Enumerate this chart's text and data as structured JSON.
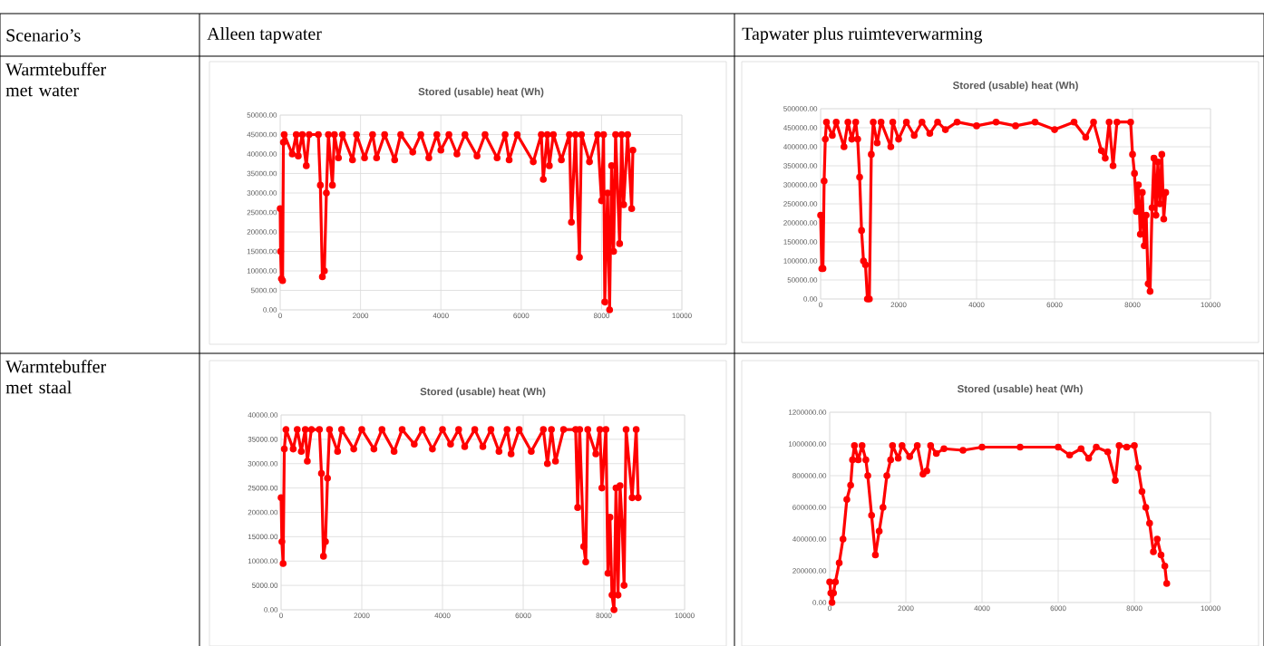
{
  "chart_data": [
    {
      "type": "line",
      "title": "Stored (usable) heat (Wh)",
      "annotations": [
        "Scenario’s",
        "Alleen tapwater",
        "Warmtebuffer met water"
      ],
      "color": "#ff0000",
      "marker": "circle",
      "line_style": "solid",
      "grid": true,
      "xlim": [
        0,
        10000
      ],
      "xticks": [
        0,
        2000,
        4000,
        6000,
        8000,
        10000
      ],
      "ylim": [
        0,
        50000
      ],
      "yticks": [
        {
          "value": 0,
          "label": "0.00"
        },
        {
          "value": 5000,
          "label": "5000.00"
        },
        {
          "value": 10000,
          "label": "10000.00"
        },
        {
          "value": 15000,
          "label": "15000.00"
        },
        {
          "value": 20000,
          "label": "20000.00"
        },
        {
          "value": 25000,
          "label": "25000.00"
        },
        {
          "value": 30000,
          "label": "30000.00"
        },
        {
          "value": 35000,
          "label": "35000.00"
        },
        {
          "value": 40000,
          "label": "40000.00"
        },
        {
          "value": 45000,
          "label": "45000.00"
        },
        {
          "value": 50000,
          "label": "50000.00"
        }
      ],
      "x": [
        0,
        10,
        30,
        60,
        80,
        100,
        300,
        400,
        450,
        550,
        650,
        720,
        950,
        1000,
        1050,
        1100,
        1150,
        1200,
        1300,
        1350,
        1450,
        1550,
        1800,
        1900,
        2100,
        2300,
        2400,
        2600,
        2850,
        3000,
        3300,
        3500,
        3700,
        3900,
        4000,
        4200,
        4400,
        4600,
        4900,
        5100,
        5400,
        5600,
        5700,
        5900,
        6300,
        6500,
        6550,
        6650,
        6700,
        6800,
        7000,
        7200,
        7250,
        7350,
        7450,
        7500,
        7700,
        7900,
        8000,
        8050,
        8080,
        8150,
        8200,
        8250,
        8300,
        8350,
        8450,
        8500,
        8550,
        8650,
        8750,
        8780
      ],
      "values": [
        26000,
        15000,
        8000,
        7500,
        43000,
        45000,
        40000,
        45000,
        39500,
        45000,
        37000,
        45000,
        45000,
        32000,
        8500,
        10000,
        30000,
        45000,
        32000,
        45000,
        39000,
        45000,
        38500,
        45000,
        39000,
        45000,
        39000,
        45000,
        38500,
        45000,
        40500,
        45000,
        39000,
        45000,
        41000,
        45000,
        40000,
        45000,
        39500,
        45000,
        39000,
        45000,
        38500,
        45000,
        38000,
        45000,
        33500,
        45000,
        37000,
        45000,
        38500,
        45000,
        22500,
        45000,
        13500,
        45000,
        38000,
        45000,
        28000,
        45000,
        2000,
        30000,
        0,
        37000,
        15000,
        45000,
        17000,
        45000,
        27000,
        45000,
        26000,
        41000
      ]
    },
    {
      "type": "line",
      "title": "Stored (usable) heat (Wh)",
      "annotations": [
        "Tapwater plus ruimteverwarming"
      ],
      "color": "#ff0000",
      "marker": "circle",
      "line_style": "solid",
      "grid": true,
      "xlim": [
        0,
        10000
      ],
      "xticks": [
        0,
        2000,
        4000,
        6000,
        8000,
        10000
      ],
      "ylim": [
        0,
        500000
      ],
      "yticks": [
        {
          "value": 0,
          "label": "0.00"
        },
        {
          "value": 50000,
          "label": "50000.00"
        },
        {
          "value": 100000,
          "label": "100000.00"
        },
        {
          "value": 150000,
          "label": "150000.00"
        },
        {
          "value": 200000,
          "label": "200000.00"
        },
        {
          "value": 250000,
          "label": "250000.00"
        },
        {
          "value": 300000,
          "label": "300000.00"
        },
        {
          "value": 350000,
          "label": "350000.00"
        },
        {
          "value": 400000,
          "label": "400000.00"
        },
        {
          "value": 450000,
          "label": "450000.00"
        },
        {
          "value": 500000,
          "label": "500000.00"
        }
      ],
      "x": [
        0,
        30,
        60,
        90,
        120,
        150,
        300,
        400,
        600,
        700,
        800,
        900,
        950,
        1000,
        1050,
        1100,
        1150,
        1200,
        1250,
        1300,
        1350,
        1450,
        1550,
        1800,
        1850,
        2000,
        2200,
        2400,
        2600,
        2800,
        3000,
        3200,
        3500,
        4000,
        4500,
        5000,
        5500,
        6000,
        6500,
        6800,
        7000,
        7200,
        7300,
        7400,
        7500,
        7600,
        7950,
        8000,
        8050,
        8100,
        8150,
        8200,
        8250,
        8300,
        8350,
        8400,
        8450,
        8500,
        8550,
        8600,
        8650,
        8700,
        8750,
        8800,
        8850
      ],
      "values": [
        220000,
        80000,
        80000,
        310000,
        420000,
        465000,
        430000,
        465000,
        400000,
        465000,
        420000,
        465000,
        420000,
        320000,
        180000,
        100000,
        90000,
        0,
        0,
        380000,
        465000,
        410000,
        465000,
        400000,
        465000,
        420000,
        465000,
        430000,
        465000,
        435000,
        465000,
        445000,
        465000,
        455000,
        465000,
        455000,
        465000,
        445000,
        465000,
        425000,
        465000,
        390000,
        370000,
        465000,
        350000,
        465000,
        465000,
        380000,
        330000,
        230000,
        300000,
        170000,
        280000,
        140000,
        220000,
        40000,
        20000,
        240000,
        370000,
        220000,
        360000,
        250000,
        380000,
        210000,
        280000
      ]
    },
    {
      "type": "line",
      "title": "Stored (usable) heat (Wh)",
      "annotations": [
        "Warmtebuffer met staal"
      ],
      "color": "#ff0000",
      "marker": "circle",
      "line_style": "solid",
      "grid": true,
      "xlim": [
        0,
        10000
      ],
      "xticks": [
        0,
        2000,
        4000,
        6000,
        8000,
        10000
      ],
      "ylim": [
        0,
        40000
      ],
      "yticks": [
        {
          "value": 0,
          "label": "0.00"
        },
        {
          "value": 5000,
          "label": "5000.00"
        },
        {
          "value": 10000,
          "label": "10000.00"
        },
        {
          "value": 15000,
          "label": "15000.00"
        },
        {
          "value": 20000,
          "label": "20000.00"
        },
        {
          "value": 25000,
          "label": "25000.00"
        },
        {
          "value": 30000,
          "label": "30000.00"
        },
        {
          "value": 35000,
          "label": "35000.00"
        },
        {
          "value": 40000,
          "label": "40000.00"
        }
      ],
      "x": [
        0,
        20,
        50,
        80,
        120,
        300,
        400,
        500,
        600,
        650,
        750,
        950,
        1000,
        1050,
        1100,
        1150,
        1200,
        1400,
        1500,
        1800,
        2000,
        2300,
        2500,
        2800,
        3000,
        3300,
        3500,
        3750,
        4000,
        4200,
        4400,
        4550,
        4800,
        5000,
        5200,
        5400,
        5600,
        5700,
        5900,
        6200,
        6500,
        6600,
        6700,
        6800,
        7000,
        7300,
        7350,
        7400,
        7500,
        7550,
        7600,
        7800,
        7900,
        7950,
        8050,
        8100,
        8150,
        8200,
        8250,
        8300,
        8350,
        8400,
        8450,
        8500,
        8550,
        8700,
        8800,
        8850
      ],
      "values": [
        23000,
        14000,
        9500,
        33000,
        37000,
        33000,
        37000,
        32500,
        37000,
        30500,
        37000,
        37000,
        28000,
        11000,
        14000,
        27000,
        37000,
        32500,
        37000,
        33000,
        37000,
        33000,
        37000,
        32500,
        37000,
        34000,
        37000,
        33000,
        37000,
        34000,
        37000,
        33500,
        37000,
        33500,
        37000,
        32500,
        37000,
        32000,
        37000,
        32500,
        37000,
        30000,
        37000,
        30500,
        37000,
        37000,
        21000,
        37000,
        13000,
        9800,
        37000,
        32000,
        37000,
        25000,
        37000,
        7500,
        19000,
        3000,
        0,
        25000,
        3000,
        25500,
        18000,
        5000,
        37000,
        23000,
        37000,
        23000
      ]
    },
    {
      "type": "line",
      "title": "Stored (usable) heat (Wh)",
      "color": "#ff0000",
      "marker": "circle",
      "line_style": "solid",
      "grid": true,
      "xlim": [
        0,
        10000
      ],
      "xticks": [
        0,
        2000,
        4000,
        6000,
        8000,
        10000
      ],
      "ylim": [
        0,
        1200000
      ],
      "yticks": [
        {
          "value": 0,
          "label": "0.00"
        },
        {
          "value": 200000,
          "label": "200000.00"
        },
        {
          "value": 400000,
          "label": "400000.00"
        },
        {
          "value": 600000,
          "label": "600000.00"
        },
        {
          "value": 800000,
          "label": "800000.00"
        },
        {
          "value": 1000000,
          "label": "1000000.00"
        },
        {
          "value": 1200000,
          "label": "1200000.00"
        }
      ],
      "x": [
        0,
        30,
        60,
        100,
        150,
        250,
        350,
        450,
        550,
        600,
        650,
        750,
        850,
        950,
        1000,
        1100,
        1200,
        1300,
        1400,
        1500,
        1600,
        1650,
        1800,
        1900,
        2100,
        2300,
        2450,
        2550,
        2650,
        2800,
        3000,
        3500,
        4000,
        5000,
        6000,
        6300,
        6600,
        6800,
        7000,
        7300,
        7500,
        7600,
        7800,
        8000,
        8100,
        8200,
        8300,
        8400,
        8500,
        8600,
        8700,
        8800,
        8850
      ],
      "values": [
        130000,
        60000,
        0,
        60000,
        130000,
        250000,
        400000,
        650000,
        740000,
        900000,
        990000,
        900000,
        990000,
        900000,
        800000,
        550000,
        300000,
        450000,
        600000,
        800000,
        900000,
        990000,
        910000,
        990000,
        920000,
        990000,
        810000,
        830000,
        990000,
        940000,
        970000,
        960000,
        980000,
        980000,
        980000,
        930000,
        970000,
        910000,
        980000,
        950000,
        770000,
        990000,
        980000,
        990000,
        850000,
        700000,
        600000,
        500000,
        320000,
        400000,
        300000,
        230000,
        120000
      ]
    }
  ]
}
